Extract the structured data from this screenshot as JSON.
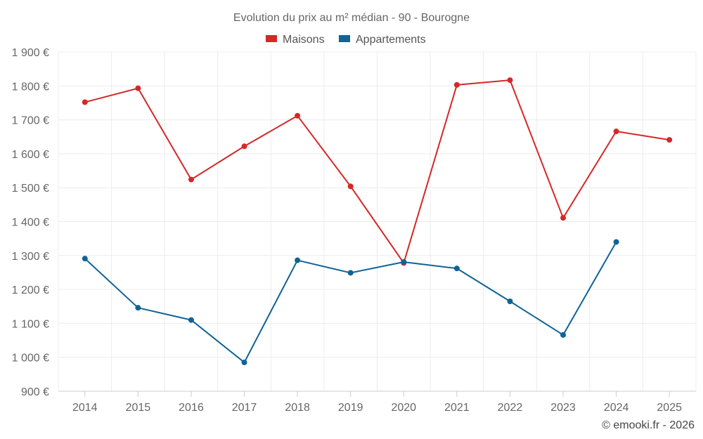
{
  "chart_data": {
    "type": "line",
    "title": "Evolution du prix au m² médian - 90 - Bourogne",
    "categories": [
      "2014",
      "2015",
      "2016",
      "2017",
      "2018",
      "2019",
      "2020",
      "2021",
      "2022",
      "2023",
      "2024",
      "2025"
    ],
    "series": [
      {
        "name": "Maisons",
        "color": "#d62728",
        "values": [
          1752,
          1793,
          1524,
          1622,
          1712,
          1504,
          1278,
          1803,
          1817,
          1411,
          1666,
          1641
        ]
      },
      {
        "name": "Appartements",
        "color": "#0f6396",
        "values": [
          1291,
          1146,
          1110,
          985,
          1286,
          1249,
          1281,
          1262,
          1165,
          1066,
          1340,
          null
        ]
      }
    ],
    "ylim": [
      900,
      1900
    ],
    "yticks": [
      900,
      1000,
      1100,
      1200,
      1300,
      1400,
      1500,
      1600,
      1700,
      1800,
      1900
    ],
    "ytick_labels": [
      "900 €",
      "1 000 €",
      "1 100 €",
      "1 200 €",
      "1 300 €",
      "1 400 €",
      "1 500 €",
      "1 600 €",
      "1 700 €",
      "1 800 €",
      "1 900 €"
    ],
    "xlabel": "",
    "ylabel": "",
    "grid": true,
    "legend_position": "top-center",
    "credit": "© emooki.fr - 2026"
  }
}
